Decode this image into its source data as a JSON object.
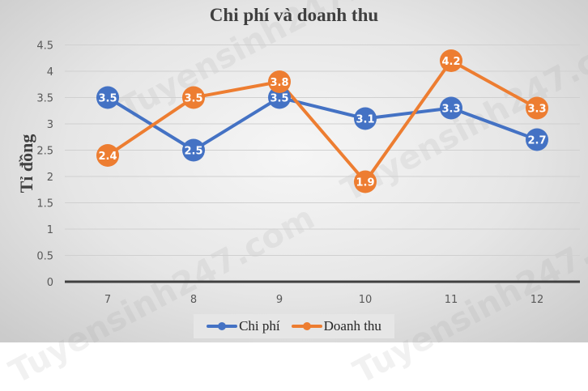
{
  "title": "Chi phí và doanh thu",
  "watermark": "Tuyensinh247.com",
  "chart_data": {
    "type": "line",
    "title": "Chi phí và doanh thu",
    "xlabel": "",
    "ylabel": "Tỉ đồng",
    "categories": [
      "7",
      "8",
      "9",
      "10",
      "11",
      "12"
    ],
    "series": [
      {
        "name": "Chi phí",
        "color": "#4472C4",
        "values": [
          3.5,
          2.5,
          3.5,
          3.1,
          3.3,
          2.7
        ]
      },
      {
        "name": "Doanh thu",
        "color": "#ED7D31",
        "values": [
          2.4,
          3.5,
          3.8,
          1.9,
          4.2,
          3.3
        ]
      }
    ],
    "y_ticks": [
      "0",
      "0.5",
      "1",
      "1.5",
      "2",
      "2.5",
      "3",
      "3.5",
      "4",
      "4.5"
    ],
    "ylim": [
      0,
      4.5
    ],
    "grid": true,
    "data_labels": true,
    "legend_position": "bottom"
  },
  "legend": {
    "items": [
      {
        "label": "Chi phí",
        "color": "#4472C4"
      },
      {
        "label": "Doanh thu",
        "color": "#ED7D31"
      }
    ]
  }
}
